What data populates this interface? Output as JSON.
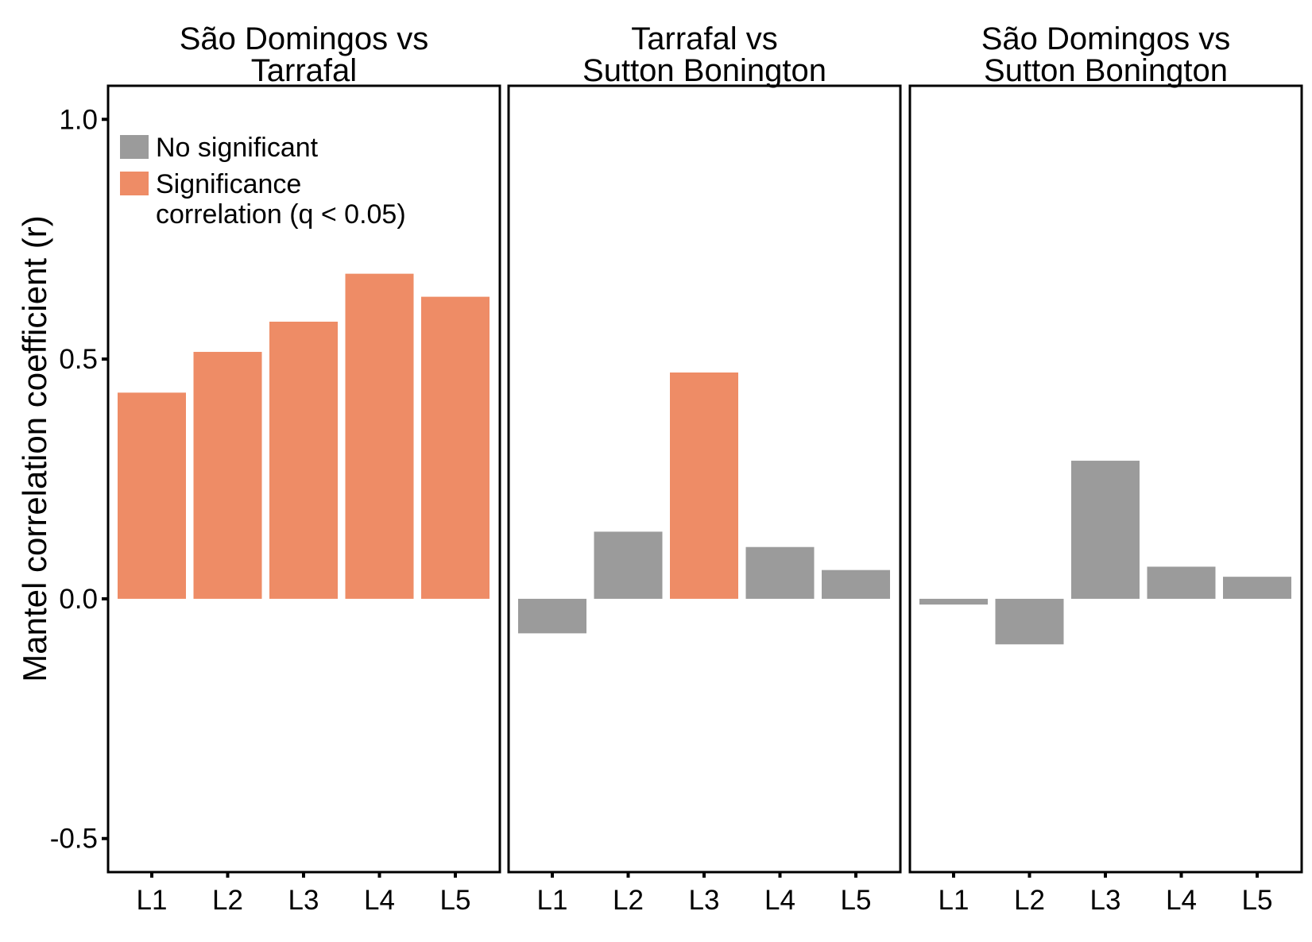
{
  "chart_data": {
    "type": "bar",
    "ylabel": "Mantel correlation coefficient (r)",
    "ylim": [
      -0.57,
      1.07
    ],
    "yticks": [
      1.0,
      0.5,
      0.0,
      -0.5
    ],
    "ytick_labels": [
      "1.0",
      "0.5",
      "0.0",
      "-0.5"
    ],
    "categories": [
      "L1",
      "L2",
      "L3",
      "L4",
      "L5"
    ],
    "legend": {
      "placement": "top-left",
      "entries": [
        {
          "key": "ns",
          "lines": [
            "No significant"
          ],
          "color": "#9b9b9b"
        },
        {
          "key": "sig",
          "lines": [
            "Significance",
            "correlation (q < 0.05)"
          ],
          "color": "#ee8c66"
        }
      ]
    },
    "colors": {
      "ns": "#9b9b9b",
      "sig": "#ee8c66"
    },
    "panels": [
      {
        "title_lines": [
          "São Domingos vs",
          "Tarrafal"
        ],
        "values": [
          0.43,
          0.515,
          0.578,
          0.678,
          0.63
        ],
        "significant": [
          true,
          true,
          true,
          true,
          true
        ]
      },
      {
        "title_lines": [
          "Tarrafal vs",
          "Sutton Bonington"
        ],
        "values": [
          -0.072,
          0.14,
          0.472,
          0.108,
          0.06
        ],
        "significant": [
          false,
          false,
          true,
          false,
          false
        ]
      },
      {
        "title_lines": [
          "São Domingos vs",
          "Sutton Bonington"
        ],
        "values": [
          -0.012,
          -0.095,
          0.288,
          0.067,
          0.046
        ],
        "significant": [
          false,
          false,
          false,
          false,
          false
        ]
      }
    ]
  }
}
